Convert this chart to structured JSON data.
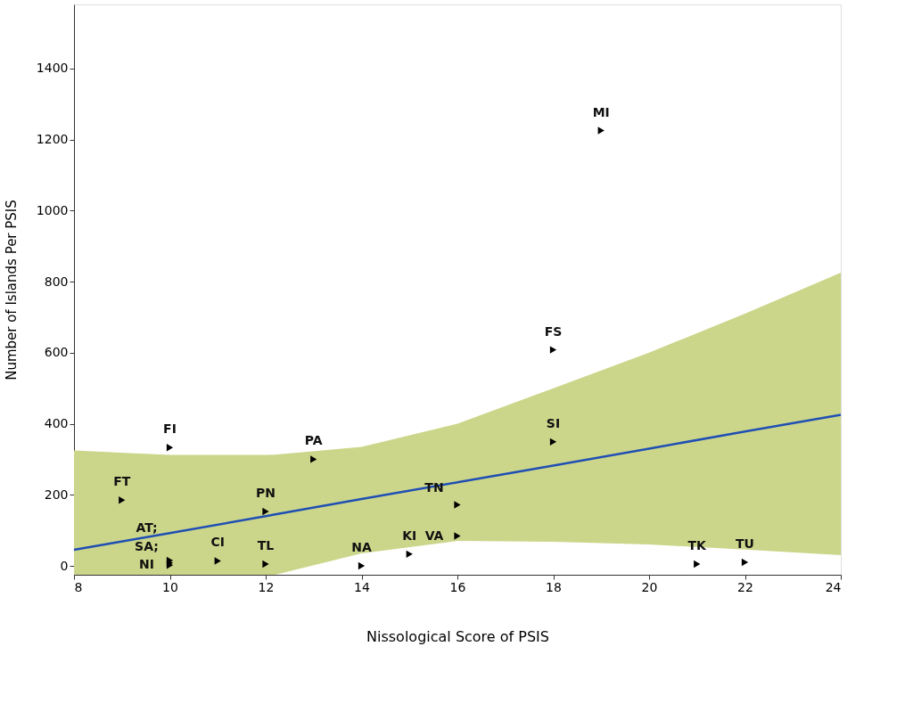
{
  "chart_data": {
    "type": "scatter",
    "xlabel": "Nissological Score of PSIS",
    "ylabel": "Number of Islands Per PSIS",
    "xlim": [
      8,
      24
    ],
    "xticks": [
      8,
      10,
      12,
      14,
      16,
      18,
      20,
      22,
      24
    ],
    "ylim": [
      -25,
      1580
    ],
    "yticks": [
      0,
      200,
      400,
      600,
      800,
      1000,
      1200,
      1400
    ],
    "grid": false,
    "series": [
      {
        "color": "#000000",
        "marker": "triangle",
        "x": [
          9,
          10,
          13,
          12,
          11,
          12,
          14,
          15,
          16,
          16,
          18,
          18,
          19,
          21,
          22,
          10,
          10,
          10
        ],
        "values": [
          185,
          333,
          300,
          153,
          14,
          5,
          0,
          33,
          84,
          172,
          349,
          608,
          1225,
          5,
          10,
          15,
          8,
          2
        ]
      },
      {
        "type": "line",
        "color": "#1f4fb4",
        "marker": "none",
        "line_style": "solid",
        "x": [
          8,
          10,
          12,
          12.2,
          14,
          16,
          18,
          20,
          22,
          24
        ],
        "values": [
          45,
          92,
          140,
          145,
          188,
          235,
          282,
          330,
          378,
          425
        ],
        "lower": [
          -25,
          -25,
          -25,
          -25,
          35,
          70,
          68,
          60,
          46,
          30
        ],
        "upper": [
          325,
          312,
          312,
          313,
          335,
          400,
          500,
          600,
          710,
          825
        ]
      }
    ],
    "annotations": [
      {
        "text": "FT",
        "x": 9,
        "y": 185
      },
      {
        "text": "FI",
        "x": 10,
        "y": 333
      },
      {
        "text": "PA",
        "x": 13,
        "y": 300
      },
      {
        "text": "PN",
        "x": 12,
        "y": 153
      },
      {
        "text": "CI",
        "x": 11,
        "y": 14
      },
      {
        "text": "TL",
        "x": 12,
        "y": 5
      },
      {
        "text": "NA",
        "x": 14,
        "y": 0
      },
      {
        "text": "KI",
        "x": 15,
        "y": 33
      },
      {
        "text": "VA",
        "x": 16,
        "y": 84
      },
      {
        "text": "TN",
        "x": 16,
        "y": 172
      },
      {
        "text": "SI",
        "x": 18,
        "y": 349
      },
      {
        "text": "FS",
        "x": 18,
        "y": 608
      },
      {
        "text": "MI",
        "x": 19,
        "y": 1225
      },
      {
        "text": "TK",
        "x": 21,
        "y": 5
      },
      {
        "text": "TU",
        "x": 22,
        "y": 10
      },
      {
        "text": "AT;",
        "x": 10,
        "y": 15
      },
      {
        "text": "SA;",
        "x": 10,
        "y": 8
      },
      {
        "text": "NI",
        "x": 10,
        "y": 2
      }
    ]
  }
}
